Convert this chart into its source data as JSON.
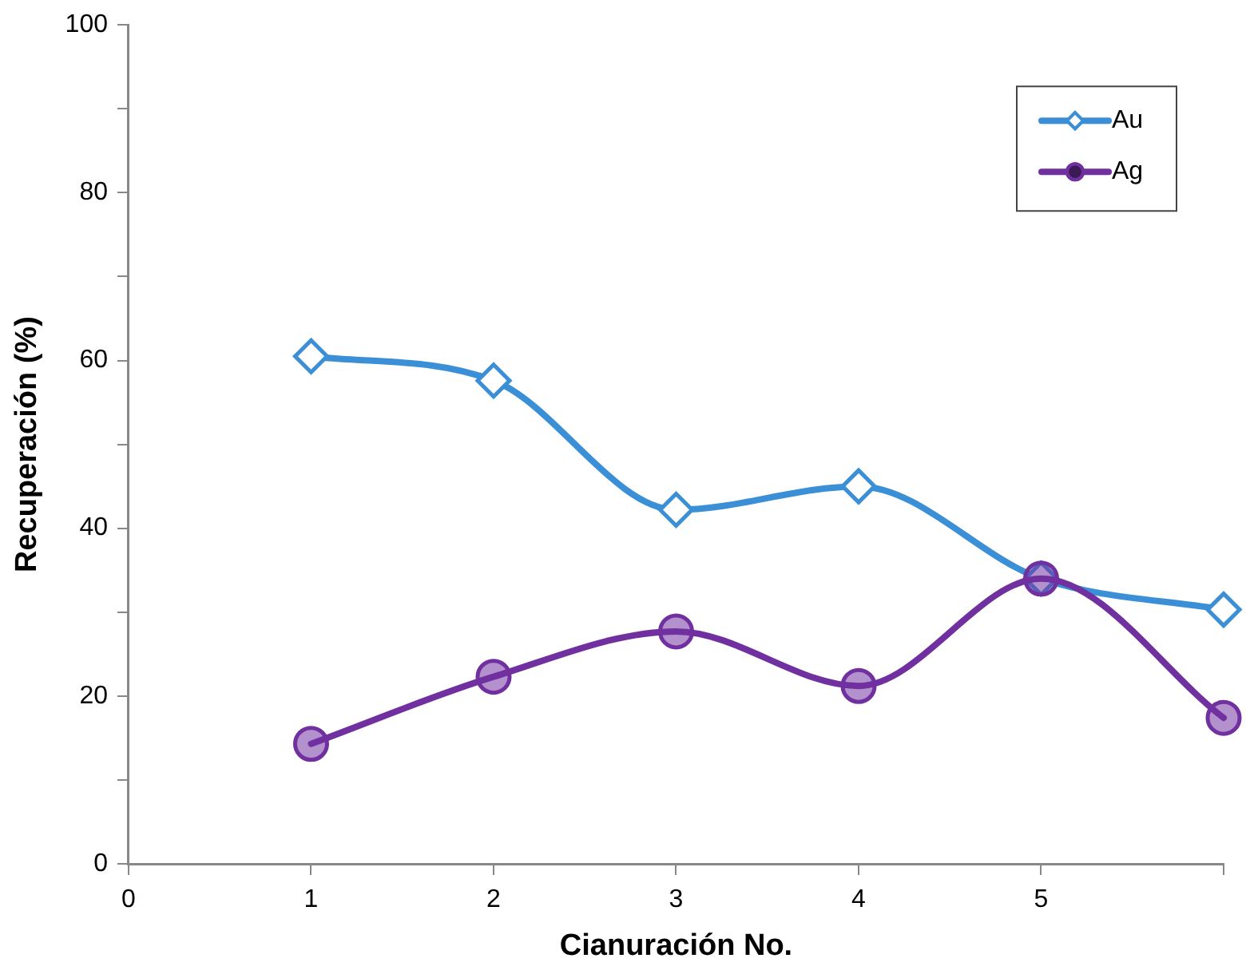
{
  "chart_data": {
    "type": "line",
    "xlabel": "Cianuración No.",
    "ylabel": "Recuperación (%)",
    "x": [
      1,
      2,
      3,
      4,
      5,
      6
    ],
    "series": [
      {
        "name": "Au",
        "color": "#3b8fd6",
        "marker": "diamond",
        "values": [
          60.5,
          57.6,
          42.2,
          45.0,
          34.0,
          30.3
        ]
      },
      {
        "name": "Ag",
        "color": "#7030a0",
        "marker": "circle",
        "values": [
          14.3,
          22.3,
          27.7,
          21.2,
          34.0,
          17.4
        ]
      }
    ],
    "xlim": [
      0,
      6
    ],
    "xticks": [
      0,
      1,
      2,
      3,
      4,
      5,
      {
        "value": 6,
        "label": null
      }
    ],
    "ylim": [
      0,
      100
    ],
    "yticks": [
      0,
      {
        "value": 10,
        "label": null
      },
      20,
      {
        "value": 30,
        "label": null
      },
      40,
      {
        "value": 50,
        "label": null
      },
      60,
      {
        "value": 70,
        "label": null
      },
      80,
      {
        "value": 90,
        "label": null
      },
      100
    ],
    "grid": false,
    "legend": "top right"
  }
}
